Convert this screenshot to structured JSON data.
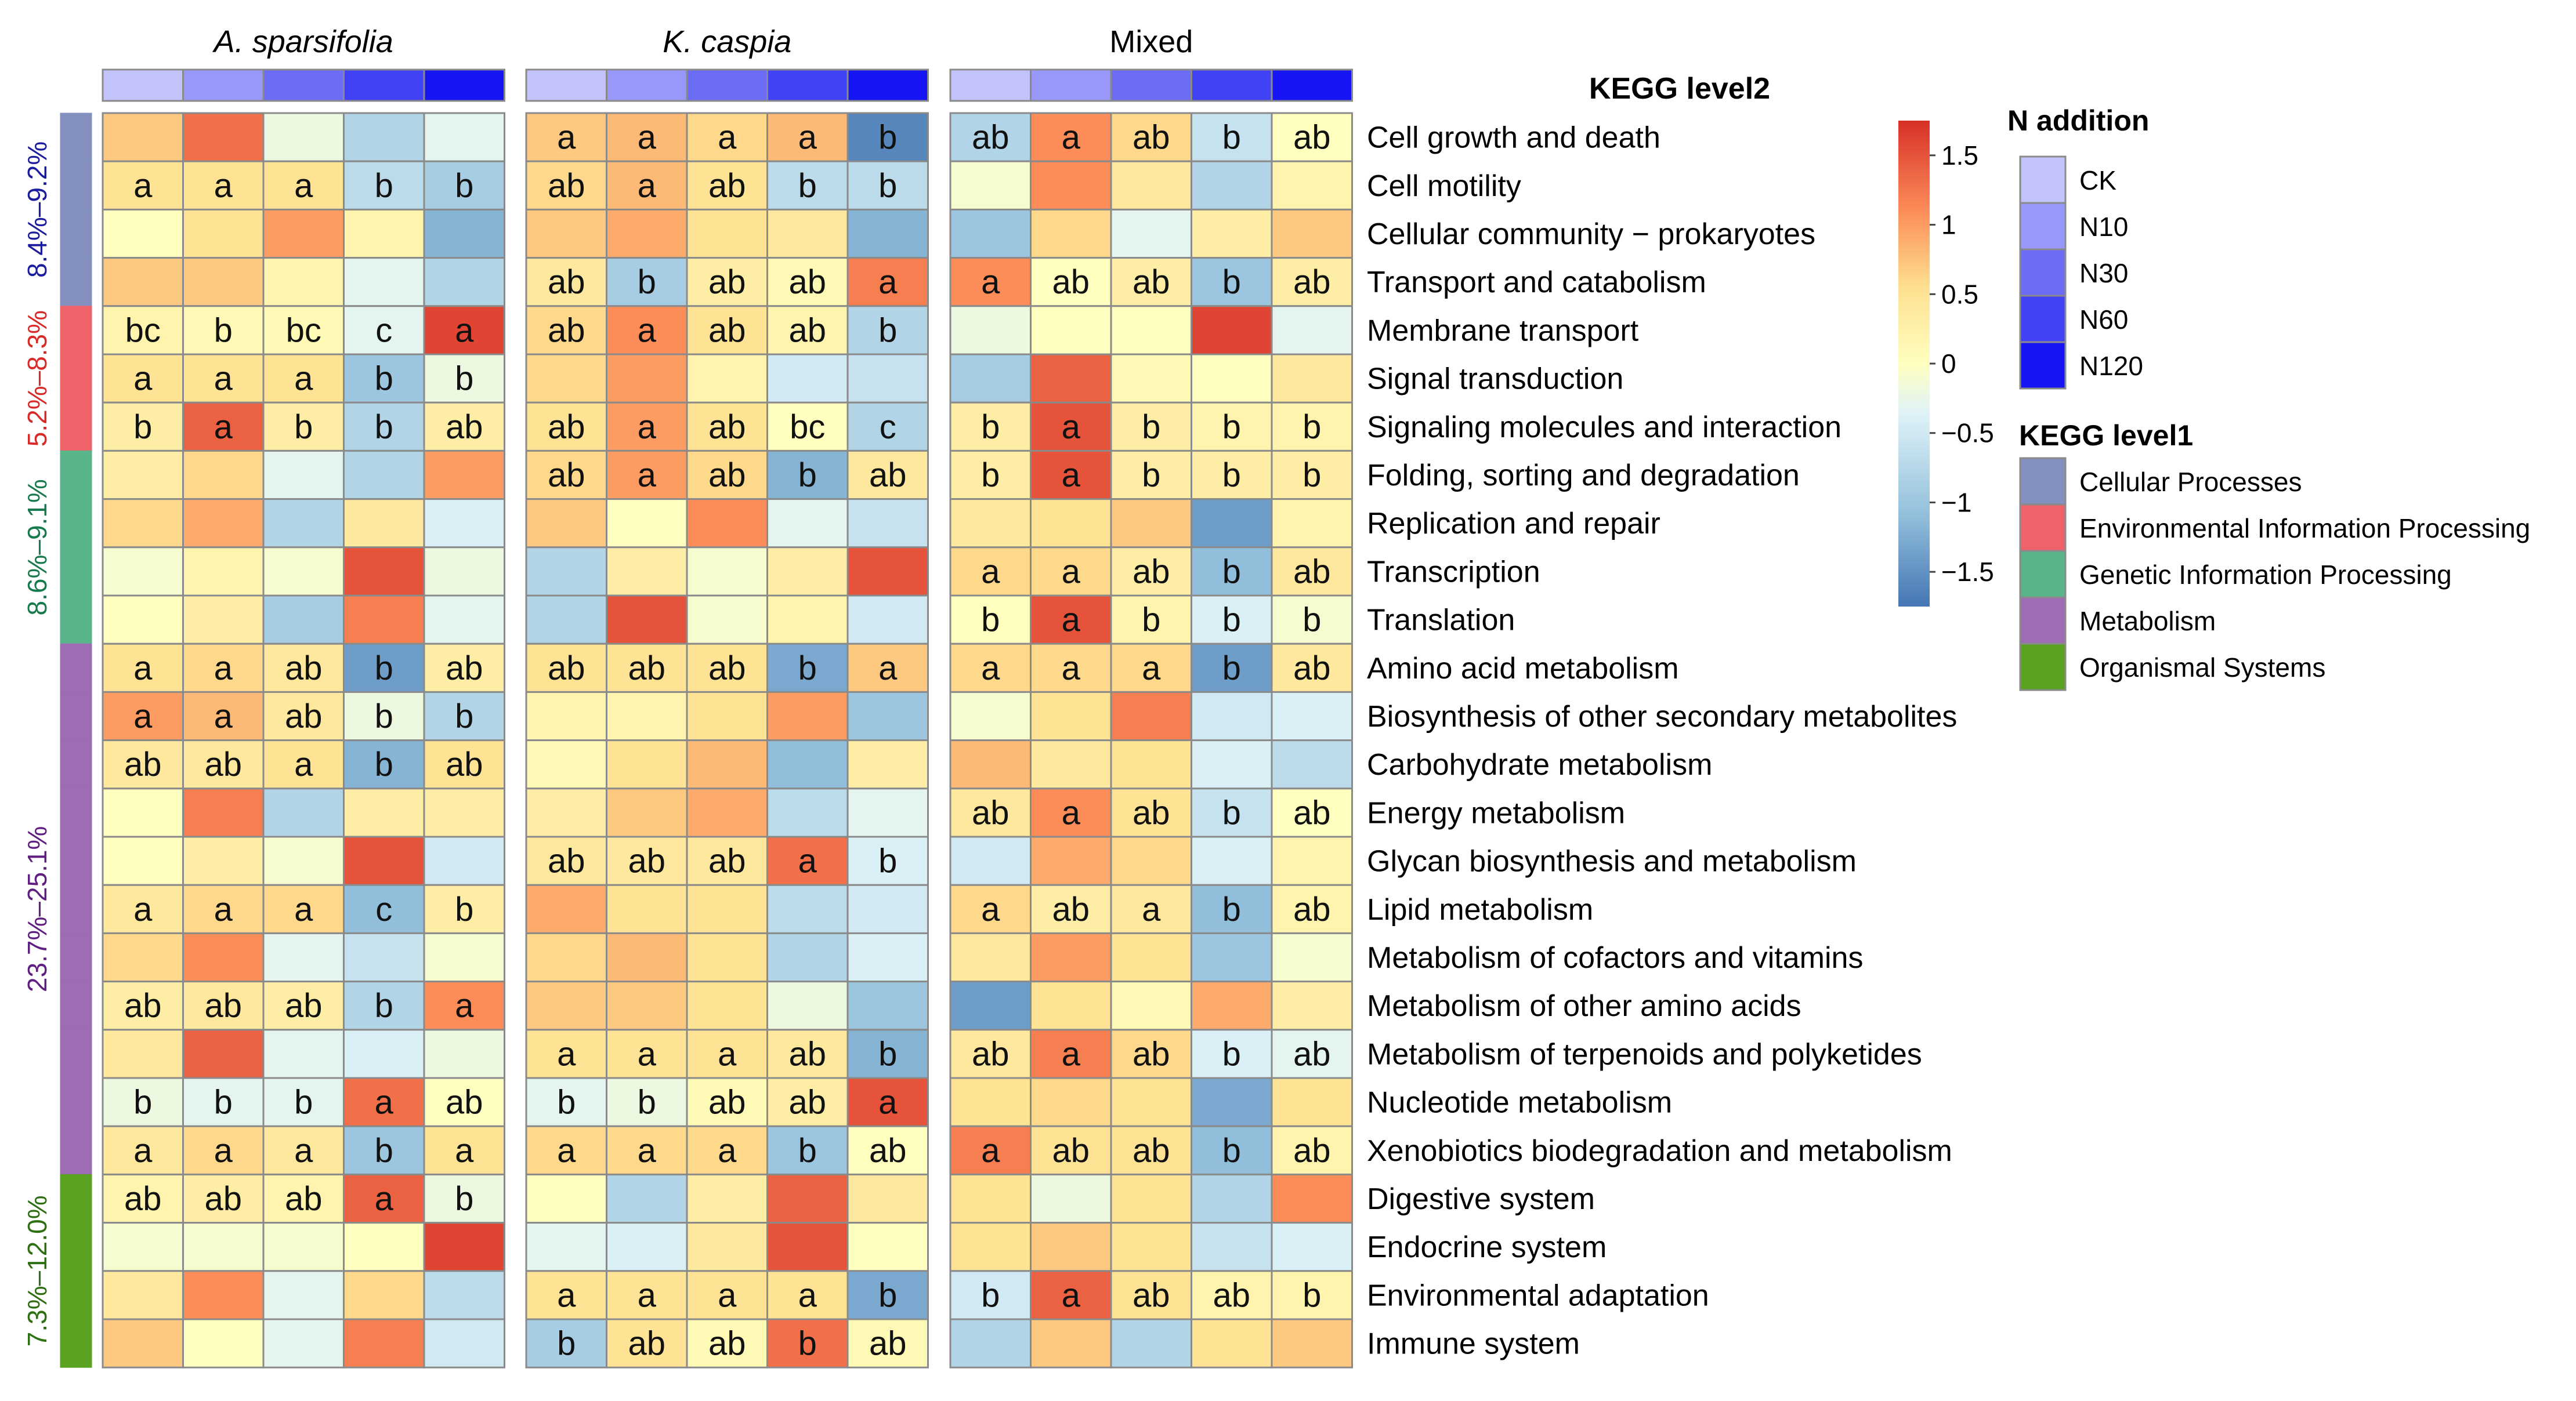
{
  "chart_data": {
    "type": "heatmap",
    "groups": [
      {
        "name": "A. sparsifolia",
        "italic": true
      },
      {
        "name": "K.  caspia",
        "italic": true
      },
      {
        "name": "Mixed",
        "italic": false
      }
    ],
    "treatments": [
      "CK",
      "N10",
      "N30",
      "N60",
      "N120"
    ],
    "treatment_colors": [
      "#c3c3fb",
      "#9898fa",
      "#6c6cf7",
      "#4141f5",
      "#1515f3"
    ],
    "rows_title": "KEGG level2",
    "categories": [
      {
        "name": "Cellular Processes",
        "color": "#8390c0",
        "range_label": "8.4%–9.2%",
        "label_color": "#1c1c9e",
        "rows": 4
      },
      {
        "name": "Environmental Information Processing",
        "color": "#f0626a",
        "range_label": "5.2%–8.3%",
        "label_color": "#d92a2a",
        "rows": 3
      },
      {
        "name": "Genetic Information Processing",
        "color": "#5ab48a",
        "range_label": "8.6%–9.1%",
        "label_color": "#177a4c",
        "rows": 4
      },
      {
        "name": "Metabolism",
        "color": "#9d6cb3",
        "range_label": "23.7%–25.1%",
        "label_color": "#5f1f80",
        "rows": 11
      },
      {
        "name": "Organismal Systems",
        "color": "#5aa321",
        "range_label": "7.3%–12.0%",
        "label_color": "#2e6f12",
        "rows": 4
      }
    ],
    "rows": [
      "Cell growth and death",
      "Cell motility",
      "Cellular community − prokaryotes",
      "Transport and catabolism",
      "Membrane transport",
      "Signal transduction",
      "Signaling molecules and interaction",
      "Folding, sorting and degradation",
      "Replication and repair",
      "Transcription",
      "Translation",
      "Amino acid metabolism",
      "Biosynthesis of other secondary metabolites",
      "Carbohydrate metabolism",
      "Energy metabolism",
      "Glycan biosynthesis and metabolism",
      "Lipid metabolism",
      "Metabolism of cofactors and vitamins",
      "Metabolism of other amino acids",
      "Metabolism of terpenoids and polyketides",
      "Nucleotide metabolism",
      "Xenobiotics biodegradation and metabolism",
      "Digestive system",
      "Endocrine system",
      "Environmental adaptation",
      "Immune system"
    ],
    "values": [
      [
        [
          0.7,
          1.3,
          -0.2,
          -0.8,
          -0.3
        ],
        [
          0.7,
          0.8,
          0.6,
          0.8,
          -1.6
        ],
        [
          -0.8,
          1.1,
          0.6,
          -0.6,
          0.0
        ]
      ],
      [
        [
          0.5,
          0.5,
          0.5,
          -0.7,
          -0.9
        ],
        [
          0.6,
          0.8,
          0.5,
          -0.7,
          -0.7
        ],
        [
          -0.1,
          1.1,
          0.4,
          -0.8,
          0.2
        ]
      ],
      [
        [
          0.0,
          0.5,
          1.0,
          0.2,
          -1.2
        ],
        [
          0.7,
          0.9,
          0.5,
          0.4,
          -1.2
        ],
        [
          -1.0,
          0.6,
          -0.3,
          0.3,
          0.7
        ]
      ],
      [
        [
          0.7,
          0.7,
          0.2,
          -0.3,
          -0.8
        ],
        [
          0.4,
          -0.9,
          0.3,
          0.1,
          1.2
        ],
        [
          1.1,
          0.0,
          0.3,
          -1.0,
          0.3
        ]
      ],
      [
        [
          0.2,
          0.1,
          0.1,
          -0.3,
          1.6
        ],
        [
          0.6,
          1.1,
          0.5,
          0.2,
          -0.8
        ],
        [
          -0.2,
          0.0,
          0.0,
          1.6,
          -0.3
        ]
      ],
      [
        [
          0.5,
          0.5,
          0.5,
          -1.0,
          -0.2
        ],
        [
          0.6,
          1.0,
          0.2,
          -0.5,
          -0.6
        ],
        [
          -0.9,
          1.4,
          0.1,
          0.0,
          0.4
        ]
      ],
      [
        [
          0.3,
          1.4,
          0.3,
          -0.8,
          0.3
        ],
        [
          0.5,
          1.0,
          0.5,
          0.0,
          -0.8
        ],
        [
          0.3,
          1.5,
          0.3,
          0.2,
          0.2
        ]
      ],
      [
        [
          0.3,
          0.6,
          -0.3,
          -0.8,
          1.0
        ],
        [
          0.6,
          1.0,
          0.6,
          -1.2,
          0.4
        ],
        [
          0.3,
          1.5,
          0.3,
          0.3,
          0.3
        ]
      ],
      [
        [
          0.6,
          0.9,
          -0.8,
          0.4,
          -0.4
        ],
        [
          0.7,
          0.0,
          1.1,
          -0.3,
          -0.6
        ],
        [
          0.4,
          0.5,
          0.7,
          -1.4,
          0.2
        ]
      ],
      [
        [
          -0.1,
          0.2,
          -0.1,
          1.5,
          -0.2
        ],
        [
          -0.8,
          0.3,
          -0.1,
          0.3,
          1.5
        ],
        [
          0.6,
          0.6,
          0.3,
          -1.1,
          0.4
        ]
      ],
      [
        [
          0.0,
          0.3,
          -0.9,
          1.2,
          -0.3
        ],
        [
          -0.8,
          1.5,
          -0.1,
          0.2,
          -0.5
        ],
        [
          0.0,
          1.5,
          0.2,
          -0.4,
          -0.1
        ]
      ],
      [
        [
          0.5,
          0.6,
          0.4,
          -1.4,
          0.3
        ],
        [
          0.5,
          0.5,
          0.5,
          -1.3,
          0.7
        ],
        [
          0.6,
          0.6,
          0.6,
          -1.4,
          0.4
        ]
      ],
      [
        [
          1.0,
          0.8,
          0.4,
          -0.2,
          -0.8
        ],
        [
          0.2,
          0.2,
          0.5,
          1.0,
          -1.0
        ],
        [
          -0.1,
          0.5,
          1.2,
          -0.5,
          -0.4
        ]
      ],
      [
        [
          0.4,
          0.4,
          0.5,
          -1.2,
          0.5
        ],
        [
          0.1,
          0.5,
          0.8,
          -1.1,
          0.3
        ],
        [
          0.8,
          0.4,
          0.5,
          -0.4,
          -0.7
        ]
      ],
      [
        [
          0.0,
          1.2,
          -0.8,
          0.3,
          0.3
        ],
        [
          0.3,
          0.7,
          0.9,
          -0.7,
          -0.3
        ],
        [
          0.4,
          1.1,
          0.5,
          -0.6,
          0.0
        ]
      ],
      [
        [
          0.0,
          0.3,
          -0.1,
          1.5,
          -0.5
        ],
        [
          0.4,
          0.4,
          0.4,
          1.3,
          -0.4
        ],
        [
          -0.5,
          0.9,
          0.6,
          -0.4,
          0.2
        ]
      ],
      [
        [
          0.4,
          0.6,
          0.6,
          -1.1,
          0.3
        ],
        [
          0.9,
          0.5,
          0.5,
          -0.7,
          -0.5
        ],
        [
          0.6,
          0.3,
          0.4,
          -1.1,
          0.2
        ]
      ],
      [
        [
          0.6,
          1.1,
          -0.3,
          -0.6,
          -0.1
        ],
        [
          0.6,
          0.8,
          0.5,
          -0.8,
          -0.4
        ],
        [
          0.4,
          1.0,
          0.5,
          -1.0,
          -0.1
        ]
      ],
      [
        [
          0.3,
          0.4,
          0.3,
          -0.8,
          1.1
        ],
        [
          0.7,
          0.7,
          0.5,
          -0.2,
          -1.0
        ],
        [
          -1.4,
          0.5,
          0.1,
          0.9,
          0.3
        ]
      ],
      [
        [
          0.4,
          1.4,
          -0.3,
          -0.4,
          -0.2
        ],
        [
          0.5,
          0.5,
          0.5,
          0.4,
          -1.2
        ],
        [
          0.4,
          1.2,
          0.6,
          -0.4,
          -0.3
        ]
      ],
      [
        [
          -0.2,
          -0.3,
          -0.3,
          1.3,
          0.0
        ],
        [
          -0.3,
          -0.2,
          0.1,
          0.3,
          1.5
        ],
        [
          0.5,
          0.6,
          0.5,
          -1.3,
          0.5
        ]
      ],
      [
        [
          0.4,
          0.6,
          0.4,
          -1.0,
          0.5
        ],
        [
          0.6,
          0.6,
          0.6,
          -1.0,
          0.0
        ],
        [
          1.2,
          0.5,
          0.5,
          -1.1,
          0.2
        ]
      ],
      [
        [
          0.2,
          0.3,
          0.2,
          1.4,
          -0.2
        ],
        [
          0.0,
          -0.8,
          0.3,
          1.4,
          0.4
        ],
        [
          0.5,
          -0.2,
          0.5,
          -0.8,
          1.1
        ]
      ],
      [
        [
          -0.1,
          -0.1,
          -0.1,
          0.0,
          1.6
        ],
        [
          -0.3,
          -0.4,
          0.4,
          1.5,
          0.0
        ],
        [
          0.5,
          0.7,
          0.5,
          -0.6,
          -0.4
        ]
      ],
      [
        [
          0.4,
          1.1,
          -0.3,
          0.6,
          -0.7
        ],
        [
          0.5,
          0.5,
          0.5,
          0.5,
          -1.3
        ],
        [
          -0.5,
          1.4,
          0.5,
          0.2,
          0.2
        ]
      ],
      [
        [
          0.7,
          0.0,
          -0.3,
          1.2,
          -0.5
        ],
        [
          -0.9,
          0.5,
          0.1,
          1.3,
          0.1
        ],
        [
          -0.8,
          0.7,
          -0.8,
          0.5,
          0.7
        ]
      ]
    ],
    "letters": [
      [
        [],
        [
          "a",
          "a",
          "a",
          "a",
          "b"
        ],
        [
          "ab",
          "a",
          "ab",
          "b",
          "ab"
        ]
      ],
      [
        [
          "a",
          "a",
          "a",
          "b",
          "b"
        ],
        [
          "ab",
          "a",
          "ab",
          "b",
          "b"
        ],
        []
      ],
      [
        [],
        [],
        []
      ],
      [
        [],
        [
          "ab",
          "b",
          "ab",
          "ab",
          "a"
        ],
        [
          "a",
          "ab",
          "ab",
          "b",
          "ab"
        ]
      ],
      [
        [
          "bc",
          "b",
          "bc",
          "c",
          "a"
        ],
        [
          "ab",
          "a",
          "ab",
          "ab",
          "b"
        ],
        []
      ],
      [
        [
          "a",
          "a",
          "a",
          "b",
          "b"
        ],
        [],
        []
      ],
      [
        [
          "b",
          "a",
          "b",
          "b",
          "ab"
        ],
        [
          "ab",
          "a",
          "ab",
          "bc",
          "c"
        ],
        [
          "b",
          "a",
          "b",
          "b",
          "b"
        ]
      ],
      [
        [],
        [
          "ab",
          "a",
          "ab",
          "b",
          "ab"
        ],
        [
          "b",
          "a",
          "b",
          "b",
          "b"
        ]
      ],
      [
        [],
        [],
        []
      ],
      [
        [],
        [],
        [
          "a",
          "a",
          "ab",
          "b",
          "ab"
        ]
      ],
      [
        [],
        [],
        [
          "b",
          "a",
          "b",
          "b",
          "b"
        ]
      ],
      [
        [
          "a",
          "a",
          "ab",
          "b",
          "ab"
        ],
        [
          "ab",
          "ab",
          "ab",
          "b",
          "a"
        ],
        [
          "a",
          "a",
          "a",
          "b",
          "ab"
        ]
      ],
      [
        [
          "a",
          "a",
          "ab",
          "b",
          "b"
        ],
        [],
        []
      ],
      [
        [
          "ab",
          "ab",
          "a",
          "b",
          "ab"
        ],
        [],
        []
      ],
      [
        [],
        [],
        [
          "ab",
          "a",
          "ab",
          "b",
          "ab"
        ]
      ],
      [
        [],
        [
          "ab",
          "ab",
          "ab",
          "a",
          "b"
        ],
        []
      ],
      [
        [
          "a",
          "a",
          "a",
          "c",
          "b"
        ],
        [],
        [
          "a",
          "ab",
          "a",
          "b",
          "ab"
        ]
      ],
      [
        [],
        [],
        []
      ],
      [
        [
          "ab",
          "ab",
          "ab",
          "b",
          "a"
        ],
        [],
        []
      ],
      [
        [],
        [
          "a",
          "a",
          "a",
          "ab",
          "b"
        ],
        [
          "ab",
          "a",
          "ab",
          "b",
          "ab"
        ]
      ],
      [
        [
          "b",
          "b",
          "b",
          "a",
          "ab"
        ],
        [
          "b",
          "b",
          "ab",
          "ab",
          "a"
        ],
        []
      ],
      [
        [
          "a",
          "a",
          "a",
          "b",
          "a"
        ],
        [
          "a",
          "a",
          "a",
          "b",
          "ab"
        ],
        [
          "a",
          "ab",
          "ab",
          "b",
          "ab"
        ]
      ],
      [
        [
          "ab",
          "ab",
          "ab",
          "a",
          "b"
        ],
        [],
        []
      ],
      [
        [],
        [],
        []
      ],
      [
        [],
        [
          "a",
          "a",
          "a",
          "a",
          "b"
        ],
        [
          "b",
          "a",
          "ab",
          "ab",
          "b"
        ]
      ],
      [
        [],
        [
          "b",
          "ab",
          "ab",
          "b",
          "ab"
        ],
        []
      ]
    ],
    "color_scale": {
      "range": [
        -1.75,
        1.75
      ],
      "stops": [
        [
          -1.75,
          "#4575b4"
        ],
        [
          -1.1,
          "#91bfdb"
        ],
        [
          -0.35,
          "#e0f3f8"
        ],
        [
          0.0,
          "#ffffbf"
        ],
        [
          0.55,
          "#fee090"
        ],
        [
          1.1,
          "#fc8d59"
        ],
        [
          1.75,
          "#d73027"
        ]
      ],
      "ticks": [
        1.5,
        1,
        0.5,
        0,
        -0.5,
        -1,
        -1.5
      ],
      "tick_labels": [
        "1.5",
        "1",
        "0.5",
        "0",
        "−0.5",
        "−1",
        "−1.5"
      ]
    },
    "legends": {
      "treatment_title": "N addition",
      "category_title": "KEGG level1"
    }
  }
}
